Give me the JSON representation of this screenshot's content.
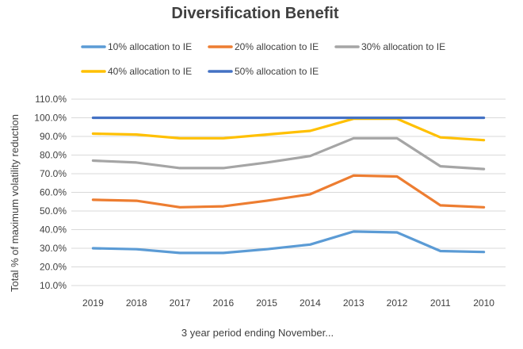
{
  "chart_data": {
    "type": "line",
    "title": "Diversification Benefit",
    "xlabel": "3 year period ending November...",
    "ylabel": "Total % of maximum volatility reduction",
    "categories": [
      "2019",
      "2018",
      "2017",
      "2016",
      "2015",
      "2014",
      "2013",
      "2012",
      "2011",
      "2010"
    ],
    "ylim": [
      10,
      110
    ],
    "yticks": [
      "10.0%",
      "20.0%",
      "30.0%",
      "40.0%",
      "50.0%",
      "60.0%",
      "70.0%",
      "80.0%",
      "90.0%",
      "100.0%",
      "110.0%"
    ],
    "grid": true,
    "legend_position": "top",
    "series": [
      {
        "name": "10% allocation to IE",
        "color": "#5B9BD5",
        "values": [
          30,
          29.5,
          27.5,
          27.5,
          29.5,
          32,
          39,
          38.5,
          28.5,
          28
        ]
      },
      {
        "name": "20% allocation to IE",
        "color": "#ED7D31",
        "values": [
          56,
          55.5,
          52,
          52.5,
          55.5,
          59,
          69,
          68.5,
          53,
          52
        ]
      },
      {
        "name": "30% allocation to IE",
        "color": "#A5A5A5",
        "values": [
          77,
          76,
          73,
          73,
          76,
          79.5,
          89,
          89,
          74,
          72.5
        ]
      },
      {
        "name": "40% allocation to IE",
        "color": "#FFC000",
        "values": [
          91.5,
          91,
          89,
          89,
          91,
          93,
          99.5,
          99.5,
          89.5,
          88
        ]
      },
      {
        "name": "50% allocation to IE",
        "color": "#4472C4",
        "values": [
          100,
          100,
          100,
          100,
          100,
          100,
          100,
          100,
          100,
          100
        ]
      }
    ]
  }
}
